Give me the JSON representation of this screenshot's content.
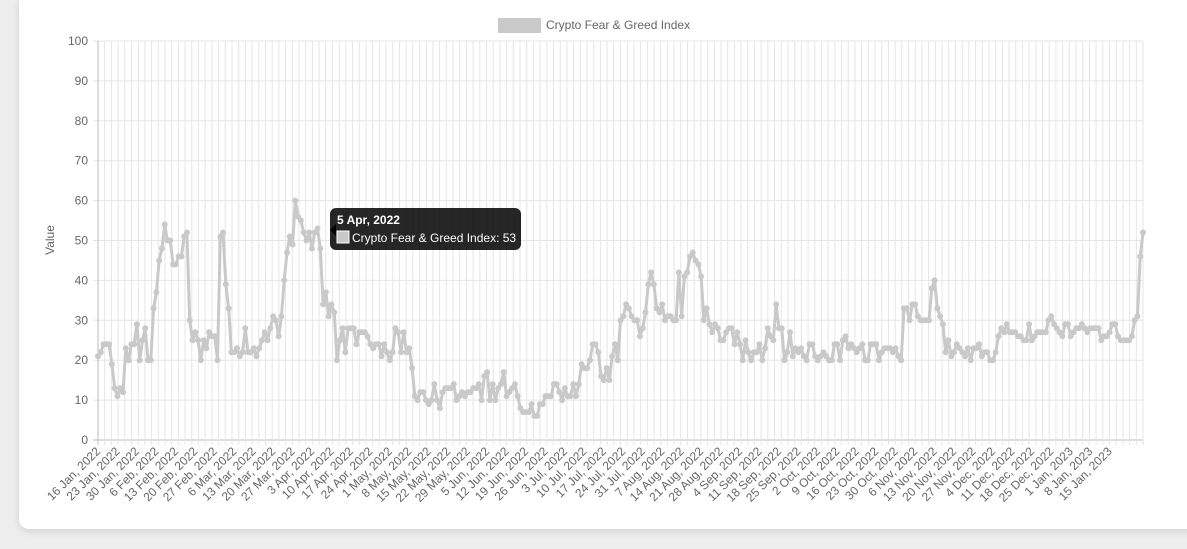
{
  "chart_data": {
    "type": "line",
    "legend": {
      "label": "Crypto Fear & Greed Index",
      "position": "top"
    },
    "ylabel": "Value",
    "ylim": [
      0,
      100
    ],
    "yticks": [
      0,
      10,
      20,
      30,
      40,
      50,
      60,
      70,
      80,
      90,
      100
    ],
    "grid": true,
    "series_color": "#c9c9c9",
    "x_tick_labels": [
      "16 Jan, 2022",
      "23 Jan, 2022",
      "30 Jan, 2022",
      "6 Feb, 2022",
      "13 Feb, 2022",
      "20 Feb, 2022",
      "27 Feb, 2022",
      "6 Mar, 2022",
      "13 Mar, 2022",
      "20 Mar, 2022",
      "27 Mar, 2022",
      "3 Apr, 2022",
      "10 Apr, 2022",
      "17 Apr, 2022",
      "24 Apr, 2022",
      "1 May, 2022",
      "8 May, 2022",
      "15 May, 2022",
      "22 May, 2022",
      "29 May, 2022",
      "5 Jun, 2022",
      "12 Jun, 2022",
      "19 Jun, 2022",
      "26 Jun, 2022",
      "3 Jul, 2022",
      "10 Jul, 2022",
      "17 Jul, 2022",
      "24 Jul, 2022",
      "31 Jul, 2022",
      "7 Aug, 2022",
      "14 Aug, 2022",
      "21 Aug, 2022",
      "28 Aug, 2022",
      "4 Sep, 2022",
      "11 Sep, 2022",
      "18 Sep, 2022",
      "25 Sep, 2022",
      "2 Oct, 2022",
      "9 Oct, 2022",
      "16 Oct, 2022",
      "23 Oct, 2022",
      "30 Oct, 2022",
      "6 Nov, 2022",
      "13 Nov, 2022",
      "20 Nov, 2022",
      "27 Nov, 2022",
      "4 Dec, 2022",
      "11 Dec, 2022",
      "18 Dec, 2022",
      "25 Dec, 2022",
      "1 Jan, 2023",
      "8 Jan, 2023",
      "15 Jan, 2023"
    ],
    "start_date": "2022-01-16",
    "values": [
      21,
      22,
      24,
      24,
      24,
      19,
      13,
      11,
      13,
      12,
      23,
      20,
      24,
      24,
      29,
      20,
      25,
      28,
      20,
      20,
      33,
      37,
      45,
      48,
      54,
      50,
      50,
      44,
      44,
      46,
      46,
      51,
      52,
      30,
      25,
      27,
      25,
      20,
      25,
      23,
      27,
      26,
      26,
      20,
      51,
      52,
      39,
      33,
      22,
      22,
      23,
      21,
      22,
      28,
      22,
      22,
      23,
      21,
      23,
      25,
      27,
      25,
      28,
      31,
      30,
      26,
      31,
      40,
      47,
      51,
      49,
      60,
      56,
      55,
      52,
      50,
      52,
      48,
      52,
      53,
      48,
      34,
      37,
      31,
      34,
      32,
      20,
      25,
      28,
      22,
      28,
      28,
      28,
      24,
      27,
      27,
      27,
      26,
      24,
      23,
      24,
      24,
      21,
      24,
      22,
      20,
      22,
      28,
      27,
      22,
      27,
      22,
      23,
      18,
      11,
      10,
      12,
      12,
      10,
      9,
      10,
      14,
      10,
      8,
      12,
      13,
      13,
      13,
      14,
      10,
      11,
      12,
      11,
      12,
      12,
      13,
      13,
      14,
      10,
      16,
      17,
      10,
      14,
      10,
      13,
      14,
      17,
      11,
      12,
      13,
      14,
      11,
      8,
      7,
      7,
      7,
      9,
      6,
      6,
      9,
      9,
      11,
      11,
      11,
      14,
      14,
      12,
      10,
      13,
      11,
      11,
      14,
      11,
      14,
      19,
      18,
      18,
      20,
      24,
      24,
      22,
      16,
      15,
      18,
      15,
      21,
      24,
      20,
      30,
      31,
      34,
      33,
      31,
      30,
      30,
      26,
      28,
      32,
      39,
      42,
      39,
      33,
      32,
      34,
      30,
      31,
      31,
      30,
      30,
      42,
      31,
      41,
      42,
      46,
      47,
      45,
      44,
      41,
      30,
      33,
      29,
      27,
      29,
      28,
      25,
      25,
      27,
      28,
      28,
      24,
      27,
      24,
      20,
      25,
      22,
      20,
      22,
      22,
      24,
      20,
      23,
      28,
      26,
      25,
      34,
      28,
      28,
      20,
      22,
      27,
      21,
      23,
      22,
      23,
      21,
      20,
      24,
      24,
      21,
      20,
      21,
      22,
      21,
      20,
      20,
      24,
      24,
      20,
      25,
      26,
      23,
      24,
      23,
      22,
      23,
      24,
      20,
      20,
      24,
      24,
      24,
      20,
      22,
      23,
      23,
      23,
      22,
      23,
      21,
      20,
      33,
      33,
      30,
      34,
      34,
      31,
      30,
      30,
      30,
      30,
      38,
      40,
      33,
      31,
      29,
      22,
      25,
      21,
      22,
      24,
      23,
      22,
      21,
      23,
      20,
      23,
      23,
      24,
      21,
      22,
      22,
      20,
      20,
      22,
      26,
      28,
      27,
      29,
      27,
      27,
      27,
      26,
      26,
      25,
      25,
      29,
      25,
      26,
      27,
      27,
      27,
      27,
      30,
      31,
      29,
      28,
      27,
      26,
      29,
      29,
      26,
      27,
      28,
      28,
      29,
      28,
      27,
      28,
      28,
      28,
      28,
      25,
      26,
      26,
      27,
      29,
      29,
      26,
      25,
      25,
      25,
      25,
      26,
      30,
      31,
      46,
      52
    ]
  },
  "tooltip": {
    "title": "5 Apr, 2022",
    "label": "Crypto Fear & Greed Index: 53"
  }
}
